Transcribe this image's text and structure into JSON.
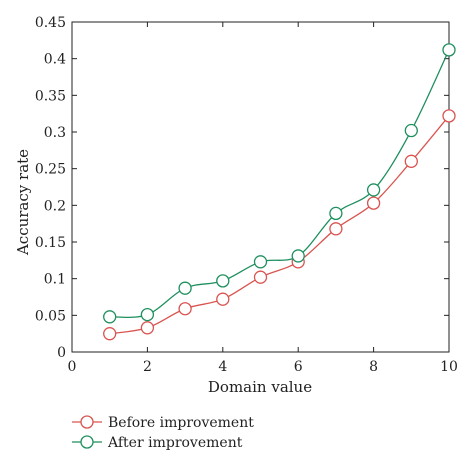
{
  "chart_data": {
    "type": "line",
    "xlabel": "Domain value",
    "ylabel": "Accuracy rate",
    "xlim": [
      0,
      10
    ],
    "ylim": [
      0,
      0.45
    ],
    "xticks": [
      0,
      2,
      4,
      6,
      8,
      10
    ],
    "yticks": [
      0,
      0.05,
      0.1,
      0.15,
      0.2,
      0.25,
      0.3,
      0.35,
      0.4,
      0.45
    ],
    "xtick_labels": [
      "0",
      "2",
      "4",
      "6",
      "8",
      "10"
    ],
    "ytick_labels": [
      "0",
      "0.05",
      "0.1",
      "0.15",
      "0.2",
      "0.25",
      "0.3",
      "0.35",
      "0.4",
      "0.45"
    ],
    "grid": false,
    "legend_position": "bottom-left",
    "x": [
      1,
      2,
      3,
      4,
      5,
      6,
      7,
      8,
      9,
      10
    ],
    "series": [
      {
        "name": "Before improvement",
        "color": "#d9534f",
        "marker": "hollow-circle",
        "values": [
          0.025,
          0.033,
          0.059,
          0.072,
          0.102,
          0.123,
          0.168,
          0.203,
          0.26,
          0.322
        ]
      },
      {
        "name": "After improvement",
        "color": "#1e8f5e",
        "marker": "hollow-circle",
        "values": [
          0.048,
          0.051,
          0.087,
          0.097,
          0.123,
          0.131,
          0.189,
          0.221,
          0.302,
          0.412
        ]
      }
    ]
  }
}
